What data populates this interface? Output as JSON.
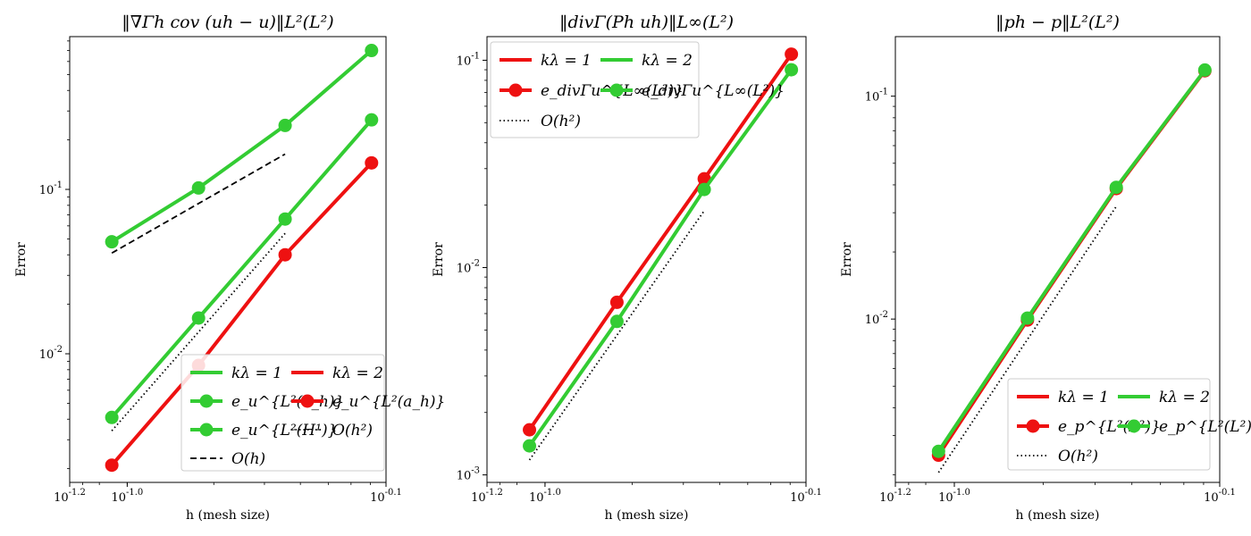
{
  "colors": {
    "red": "#ee1111",
    "green": "#33cc33",
    "black": "#000000"
  },
  "chart_data": [
    {
      "type": "line",
      "title": "‖∇Γh cov (uh − u)‖L²(L²)",
      "xlabel": "h (mesh size)",
      "ylabel": "Error",
      "xscale": "log",
      "yscale": "log",
      "xlim": [
        0.0631,
        0.794
      ],
      "ylim": [
        0.00165,
        0.85
      ],
      "xticks": [
        {
          "v": 0.0631,
          "label": "10^{-1.2}"
        },
        {
          "v": 0.1,
          "label": "10^{-1.0}"
        },
        {
          "v": 0.794,
          "label": "10^{-0.1}"
        }
      ],
      "yticks": [
        {
          "v": 0.01,
          "label": "10^{-2}"
        },
        {
          "v": 0.1,
          "label": "10^{-1}"
        }
      ],
      "legend_loc": "lower right",
      "legend_cols": 2,
      "series": [
        {
          "name": "e_u^{L2(H1)} kλ=1",
          "color": "green",
          "style": "solid",
          "marker": true,
          "x": [
            0.0884,
            0.177,
            0.354,
            0.707
          ],
          "y": [
            0.048,
            0.102,
            0.245,
            0.7
          ]
        },
        {
          "name": "e_u^{L2(ah)} kλ=1",
          "color": "green",
          "style": "solid",
          "marker": true,
          "x": [
            0.0884,
            0.177,
            0.354,
            0.707
          ],
          "y": [
            0.0041,
            0.0165,
            0.066,
            0.265
          ]
        },
        {
          "name": "e_u^{L2(ah)} kλ=2",
          "color": "red",
          "style": "solid",
          "marker": true,
          "x": [
            0.0884,
            0.177,
            0.354,
            0.707
          ],
          "y": [
            0.0021,
            0.0085,
            0.04,
            0.145
          ]
        },
        {
          "name": "O(h)",
          "color": "black",
          "style": "dashed",
          "marker": false,
          "x": [
            0.0884,
            0.354
          ],
          "y": [
            0.041,
            0.164
          ]
        },
        {
          "name": "O(h^2)",
          "color": "black",
          "style": "dotted",
          "marker": false,
          "x": [
            0.0884,
            0.354
          ],
          "y": [
            0.0034,
            0.054
          ]
        }
      ],
      "legend": [
        {
          "label": "kλ = 1",
          "color": "green",
          "style": "solid",
          "marker": false
        },
        {
          "label": "kλ = 2",
          "color": "red",
          "style": "solid",
          "marker": false
        },
        {
          "label": "e_u^{L²(a_h)}",
          "color": "green",
          "style": "solid",
          "marker": true
        },
        {
          "label": "e_u^{L²(a_h)}",
          "color": "red",
          "style": "solid",
          "marker": true
        },
        {
          "label": "e_u^{L²(H¹)}",
          "color": "green",
          "style": "solid",
          "marker": true
        },
        {
          "label": "O(h²)",
          "color": "black",
          "style": "dotted",
          "marker": false
        },
        {
          "label": "O(h)",
          "color": "black",
          "style": "dashed",
          "marker": false
        }
      ]
    },
    {
      "type": "line",
      "title": "‖divΓ(Ph uh)‖L∞(L²)",
      "xlabel": "h (mesh size)",
      "ylabel": "Error",
      "xscale": "log",
      "yscale": "log",
      "xlim": [
        0.0631,
        0.794
      ],
      "ylim": [
        0.00092,
        0.13
      ],
      "xticks": [
        {
          "v": 0.0631,
          "label": "10^{-1.2}"
        },
        {
          "v": 0.1,
          "label": "10^{-1.0}"
        },
        {
          "v": 0.794,
          "label": "10^{-0.1}"
        }
      ],
      "yticks": [
        {
          "v": 0.001,
          "label": "10^{-3}"
        },
        {
          "v": 0.01,
          "label": "10^{-2}"
        },
        {
          "v": 0.1,
          "label": "10^{-1}"
        }
      ],
      "legend_loc": "upper left",
      "legend_cols": 2,
      "series": [
        {
          "name": "e_divΓu^{L∞(L2)} kλ=1",
          "color": "red",
          "style": "solid",
          "marker": true,
          "x": [
            0.0884,
            0.177,
            0.354,
            0.707
          ],
          "y": [
            0.00165,
            0.0068,
            0.0268,
            0.107
          ]
        },
        {
          "name": "e_divΓu^{L∞(L2)} kλ=2",
          "color": "green",
          "style": "solid",
          "marker": true,
          "x": [
            0.0884,
            0.177,
            0.354,
            0.707
          ],
          "y": [
            0.00138,
            0.0055,
            0.0238,
            0.09
          ]
        },
        {
          "name": "O(h^2)",
          "color": "black",
          "style": "dotted",
          "marker": false,
          "x": [
            0.0884,
            0.354
          ],
          "y": [
            0.00118,
            0.0188
          ]
        }
      ],
      "legend": [
        {
          "label": "kλ = 1",
          "color": "red",
          "style": "solid",
          "marker": false
        },
        {
          "label": "kλ = 2",
          "color": "green",
          "style": "solid",
          "marker": false
        },
        {
          "label": "e_divΓu^{L∞(L²)}",
          "color": "red",
          "style": "solid",
          "marker": true
        },
        {
          "label": "e_divΓu^{L∞(L²)}",
          "color": "green",
          "style": "solid",
          "marker": true
        },
        {
          "label": "O(h²)",
          "color": "black",
          "style": "dotted",
          "marker": false
        }
      ]
    },
    {
      "type": "line",
      "title": "‖ph − p‖L²(L²)",
      "xlabel": "h (mesh size)",
      "ylabel": "Error",
      "xscale": "log",
      "yscale": "log",
      "xlim": [
        0.0631,
        0.794
      ],
      "ylim": [
        0.00185,
        0.185
      ],
      "xticks": [
        {
          "v": 0.0631,
          "label": "10^{-1.2}"
        },
        {
          "v": 0.1,
          "label": "10^{-1.0}"
        },
        {
          "v": 0.794,
          "label": "10^{-0.1}"
        }
      ],
      "yticks": [
        {
          "v": 0.01,
          "label": "10^{-2}"
        },
        {
          "v": 0.1,
          "label": "10^{-1}"
        }
      ],
      "legend_loc": "lower right",
      "legend_cols": 2,
      "series": [
        {
          "name": "e_p^{L2(L2)} kλ=1",
          "color": "red",
          "style": "solid",
          "marker": true,
          "x": [
            0.0884,
            0.177,
            0.354,
            0.707
          ],
          "y": [
            0.00245,
            0.0099,
            0.0385,
            0.13
          ]
        },
        {
          "name": "e_p^{L2(L2)} kλ=2",
          "color": "green",
          "style": "solid",
          "marker": true,
          "x": [
            0.0884,
            0.177,
            0.354,
            0.707
          ],
          "y": [
            0.00255,
            0.0101,
            0.039,
            0.131
          ]
        },
        {
          "name": "O(h^2)",
          "color": "black",
          "style": "dotted",
          "marker": false,
          "x": [
            0.0884,
            0.354
          ],
          "y": [
            0.00205,
            0.032
          ]
        }
      ],
      "legend": [
        {
          "label": "kλ = 1",
          "color": "red",
          "style": "solid",
          "marker": false
        },
        {
          "label": "kλ = 2",
          "color": "green",
          "style": "solid",
          "marker": false
        },
        {
          "label": "e_p^{L²(L²)}",
          "color": "red",
          "style": "solid",
          "marker": true
        },
        {
          "label": "e_p^{L²(L²)}",
          "color": "green",
          "style": "solid",
          "marker": true
        },
        {
          "label": "O(h²)",
          "color": "black",
          "style": "dotted",
          "marker": false
        }
      ]
    }
  ]
}
